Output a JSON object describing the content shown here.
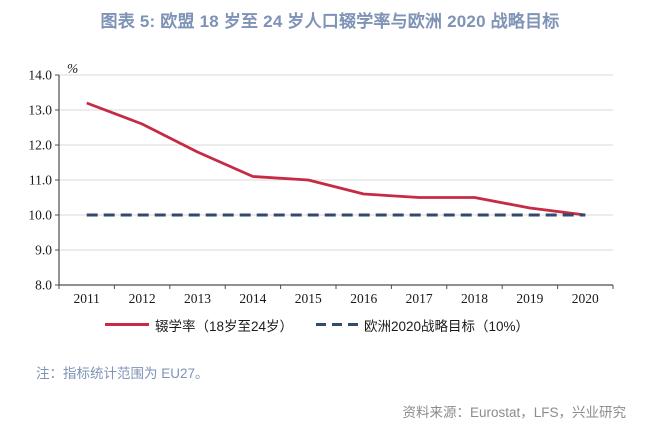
{
  "title": "图表 5: 欧盟 18 岁至 24 岁人口辍学率与欧洲 2020 战略目标",
  "note": "注：指标统计范围为 EU27。",
  "source": "资料来源：Eurostat，LFS，兴业研究",
  "colors": {
    "title_blue": "#7E93B6",
    "series_red": "#C62A44",
    "target_navy": "#324A6D",
    "grid_gray": "#D9D9D9",
    "axis_gray": "#4D4D4D",
    "tick_text": "#1a1a1a",
    "note_blue": "#7E93B6",
    "source_gray": "#8C8C8C"
  },
  "legend": [
    {
      "label": "辍学率（18岁至24岁）",
      "style": "solid",
      "color": "#C62A44"
    },
    {
      "label": "欧洲2020战略目标（10%）",
      "style": "dashed",
      "color": "#324A6D"
    }
  ],
  "chart_data": {
    "type": "line",
    "title": "图表 5: 欧盟 18 岁至 24 岁人口辍学率与欧洲 2020 战略目标",
    "categories": [
      "2011",
      "2012",
      "2013",
      "2014",
      "2015",
      "2016",
      "2017",
      "2018",
      "2019",
      "2020"
    ],
    "series": [
      {
        "name": "辍学率（18岁至24岁）",
        "values": [
          13.2,
          12.6,
          11.8,
          11.1,
          11.0,
          10.6,
          10.5,
          10.5,
          10.2,
          10.0
        ],
        "color": "#C62A44",
        "style": "solid"
      },
      {
        "name": "欧洲2020战略目标（10%）",
        "values": [
          10.0,
          10.0,
          10.0,
          10.0,
          10.0,
          10.0,
          10.0,
          10.0,
          10.0,
          10.0
        ],
        "color": "#324A6D",
        "style": "dashed"
      }
    ],
    "xlabel": "",
    "ylabel": "",
    "unit_label": "%",
    "ylim": [
      8.0,
      14.0
    ],
    "y_ticks": [
      "14.0",
      "13.0",
      "12.0",
      "11.0",
      "10.0",
      "9.0",
      "8.0"
    ],
    "grid": true,
    "legend_position": "bottom"
  }
}
